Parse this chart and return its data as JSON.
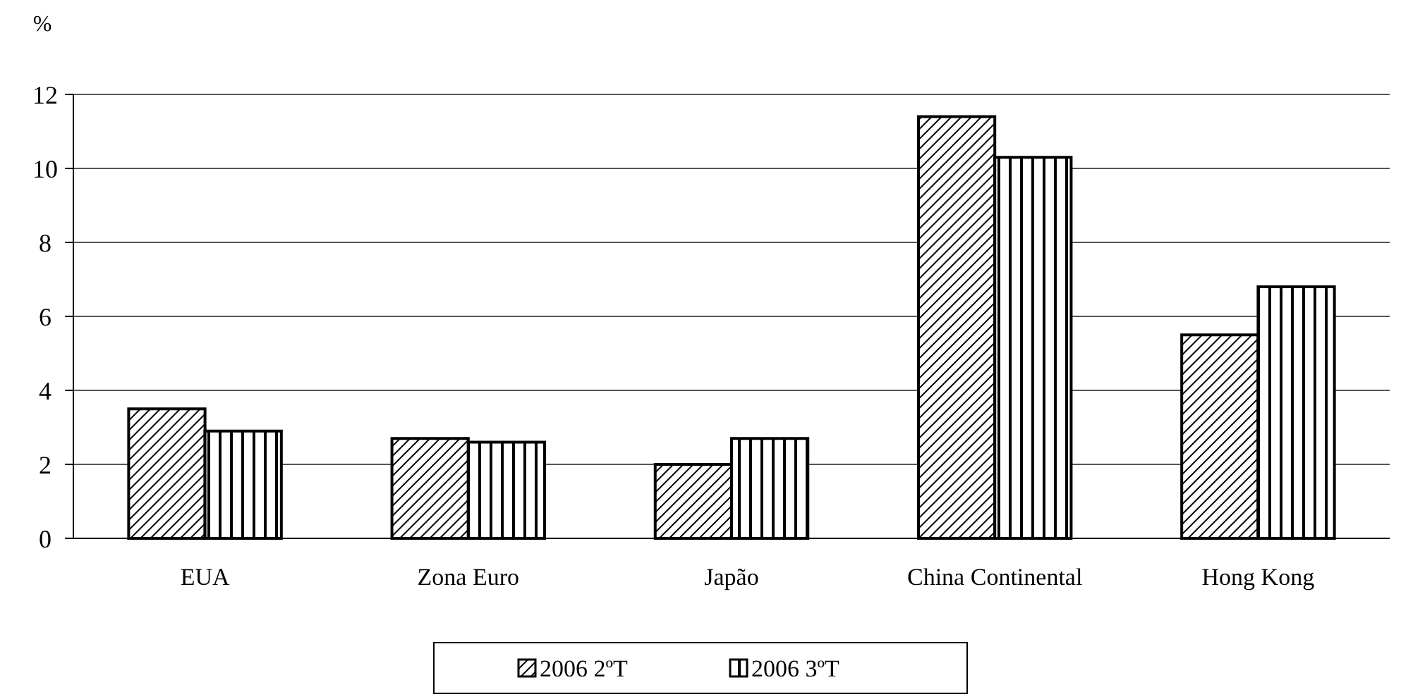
{
  "chart_data": {
    "type": "bar",
    "ylabel": "%",
    "categories": [
      "EUA",
      "Zona Euro",
      "Japão",
      "China Continental",
      "Hong Kong"
    ],
    "series": [
      {
        "name": "2006 2ºT",
        "color": "#000000",
        "values": [
          3.5,
          2.7,
          2.0,
          11.4,
          5.5
        ]
      },
      {
        "name": "2006 3ºT",
        "color": "#000000",
        "values": [
          2.9,
          2.6,
          2.7,
          10.3,
          6.8
        ]
      }
    ],
    "ylim": [
      0,
      12
    ],
    "yticks": [
      0,
      2,
      4,
      6,
      8,
      10,
      12
    ],
    "grid": "y",
    "legend": "bottom"
  }
}
